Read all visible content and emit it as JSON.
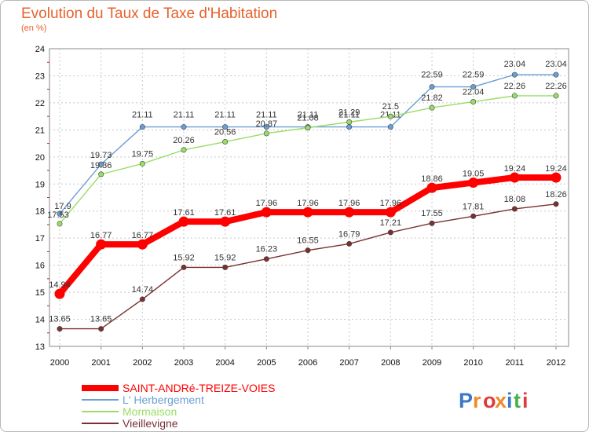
{
  "chart_data": {
    "type": "line",
    "title": "Evolution du Taux de Taxe d'Habitation",
    "subtitle": "(en %)",
    "xlabel": "",
    "ylabel": "",
    "x": [
      2000,
      2001,
      2002,
      2003,
      2004,
      2005,
      2006,
      2007,
      2008,
      2009,
      2010,
      2011,
      2012
    ],
    "x_tick_labels": [
      "2000",
      "2001",
      "2002",
      "2003",
      "2004",
      "2005",
      "2006",
      "2007",
      "2008",
      "2009",
      "2010",
      "2011",
      "2012"
    ],
    "ylim": [
      13,
      24
    ],
    "y_tick_labels": [
      "13",
      "14",
      "15",
      "16",
      "17",
      "18",
      "19",
      "20",
      "21",
      "22",
      "23",
      "24"
    ],
    "grid": true,
    "legend_position": "bottom-left",
    "series": [
      {
        "name": "SAINT-ANDRé-TREIZE-VOIES",
        "color": "#ff0000",
        "values": [
          14.94,
          16.77,
          16.77,
          17.61,
          17.61,
          17.96,
          17.96,
          17.96,
          17.96,
          18.86,
          19.05,
          19.24,
          19.24
        ],
        "labels": [
          "14.94",
          "16.77",
          "16.77",
          "17.61",
          "17.61",
          "17.96",
          "17.96",
          "17.96",
          "17.96",
          "18.86",
          "19.05",
          "19.24",
          "19.24"
        ]
      },
      {
        "name": "L' Herbergement",
        "color": "#6a9fd4",
        "values": [
          17.9,
          19.73,
          21.11,
          21.11,
          21.11,
          21.11,
          21.11,
          21.11,
          21.11,
          22.59,
          22.59,
          23.04,
          23.04
        ],
        "labels": [
          "17.9",
          "19.73",
          "21.11",
          "21.11",
          "21.11",
          "21.11",
          "21.11",
          "21.11",
          "21.11",
          "22.59",
          "22.59",
          "23.04",
          "23.04"
        ]
      },
      {
        "name": "Mormaison",
        "color": "#99dd66",
        "values": [
          17.53,
          19.36,
          19.75,
          20.26,
          20.56,
          20.87,
          21.08,
          21.29,
          21.5,
          21.82,
          22.04,
          22.26,
          22.26
        ],
        "labels": [
          "17.53",
          "19.36",
          "19.75",
          "20.26",
          "20.56",
          "20.87",
          "21.08",
          "21.29",
          "21.5",
          "21.82",
          "22.04",
          "22.26",
          "22.26"
        ]
      },
      {
        "name": "Vieillevigne",
        "color": "#7a3030",
        "values": [
          13.65,
          13.65,
          14.74,
          15.92,
          15.92,
          16.23,
          16.55,
          16.79,
          17.21,
          17.55,
          17.81,
          18.08,
          18.26
        ],
        "labels": [
          "13.65",
          "13.65",
          "14.74",
          "15.92",
          "15.92",
          "16.23",
          "16.55",
          "16.79",
          "17.21",
          "17.55",
          "17.81",
          "18.08",
          "18.26"
        ]
      }
    ]
  },
  "logo": {
    "text": "Proxiti",
    "letters": [
      "P",
      "r",
      "o",
      "x",
      "i",
      "t",
      "i"
    ],
    "colors": [
      "#3a78c8",
      "#f08a2a",
      "#e23b3b",
      "#f08a2a",
      "#3a78c8",
      "#48b04a",
      "#e23b3b"
    ]
  }
}
